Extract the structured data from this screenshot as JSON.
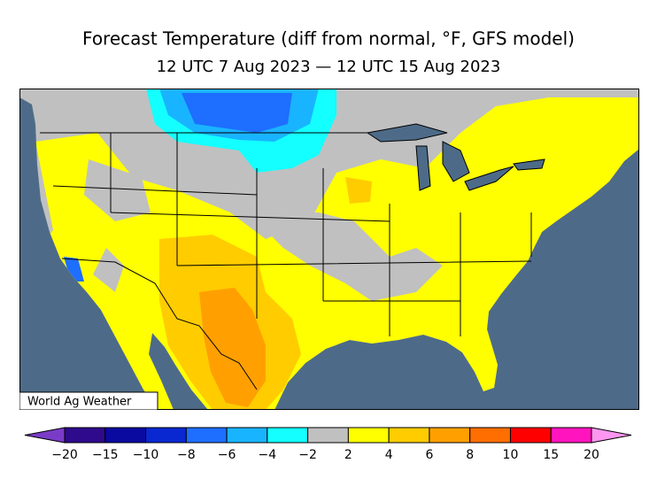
{
  "title": "Forecast Temperature (diff from normal, °F, GFS model)",
  "subtitle": "12 UTC 7 Aug 2023 — 12 UTC 15 Aug 2023",
  "credit": "World Ag Weather",
  "legend": {
    "ticks": [
      "−20",
      "−15",
      "−10",
      "−8",
      "−6",
      "−4",
      "−2",
      "2",
      "4",
      "6",
      "8",
      "10",
      "15",
      "20"
    ],
    "colors": [
      "#2e0a8c",
      "#0a0aa0",
      "#0a28d2",
      "#1e6eff",
      "#19b4ff",
      "#14ffff",
      "#c0c0c0",
      "#ffff00",
      "#ffcc00",
      "#ffa000",
      "#ff6e00",
      "#ff0000",
      "#ff14be"
    ],
    "under_color": "#7a3cc8",
    "over_color": "#ff96f0"
  }
}
